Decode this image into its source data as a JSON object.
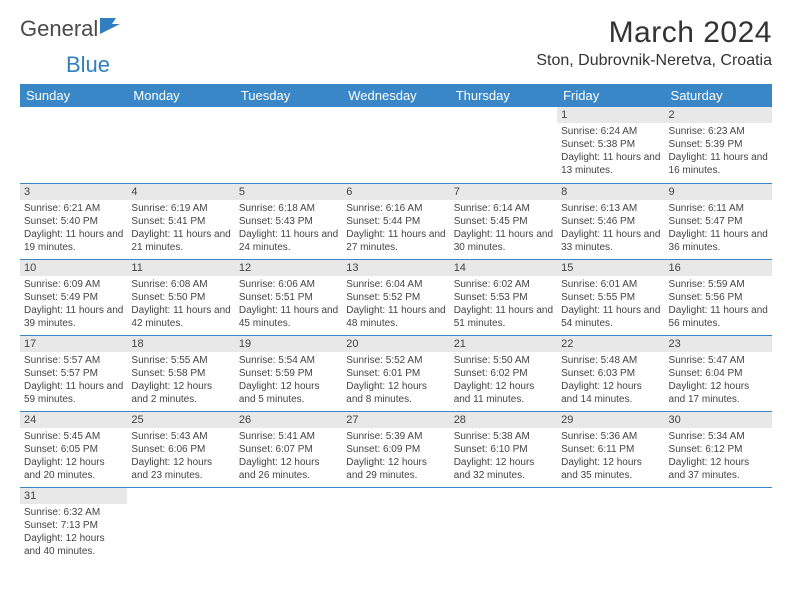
{
  "brand": {
    "name_part1": "General",
    "name_part2": "Blue"
  },
  "title": "March 2024",
  "location": "Ston, Dubrovnik-Neretva, Croatia",
  "colors": {
    "header_bg": "#3a87c7",
    "header_text": "#ffffff",
    "row_divider": "#3a87c7",
    "daynum_bg": "#e8e8e8",
    "text": "#333333",
    "logo_blue": "#2f7fc1"
  },
  "weekdays": [
    "Sunday",
    "Monday",
    "Tuesday",
    "Wednesday",
    "Thursday",
    "Friday",
    "Saturday"
  ],
  "weeks": [
    [
      {
        "day": "",
        "sunrise": "",
        "sunset": "",
        "daylight": ""
      },
      {
        "day": "",
        "sunrise": "",
        "sunset": "",
        "daylight": ""
      },
      {
        "day": "",
        "sunrise": "",
        "sunset": "",
        "daylight": ""
      },
      {
        "day": "",
        "sunrise": "",
        "sunset": "",
        "daylight": ""
      },
      {
        "day": "",
        "sunrise": "",
        "sunset": "",
        "daylight": ""
      },
      {
        "day": "1",
        "sunrise": "Sunrise: 6:24 AM",
        "sunset": "Sunset: 5:38 PM",
        "daylight": "Daylight: 11 hours and 13 minutes."
      },
      {
        "day": "2",
        "sunrise": "Sunrise: 6:23 AM",
        "sunset": "Sunset: 5:39 PM",
        "daylight": "Daylight: 11 hours and 16 minutes."
      }
    ],
    [
      {
        "day": "3",
        "sunrise": "Sunrise: 6:21 AM",
        "sunset": "Sunset: 5:40 PM",
        "daylight": "Daylight: 11 hours and 19 minutes."
      },
      {
        "day": "4",
        "sunrise": "Sunrise: 6:19 AM",
        "sunset": "Sunset: 5:41 PM",
        "daylight": "Daylight: 11 hours and 21 minutes."
      },
      {
        "day": "5",
        "sunrise": "Sunrise: 6:18 AM",
        "sunset": "Sunset: 5:43 PM",
        "daylight": "Daylight: 11 hours and 24 minutes."
      },
      {
        "day": "6",
        "sunrise": "Sunrise: 6:16 AM",
        "sunset": "Sunset: 5:44 PM",
        "daylight": "Daylight: 11 hours and 27 minutes."
      },
      {
        "day": "7",
        "sunrise": "Sunrise: 6:14 AM",
        "sunset": "Sunset: 5:45 PM",
        "daylight": "Daylight: 11 hours and 30 minutes."
      },
      {
        "day": "8",
        "sunrise": "Sunrise: 6:13 AM",
        "sunset": "Sunset: 5:46 PM",
        "daylight": "Daylight: 11 hours and 33 minutes."
      },
      {
        "day": "9",
        "sunrise": "Sunrise: 6:11 AM",
        "sunset": "Sunset: 5:47 PM",
        "daylight": "Daylight: 11 hours and 36 minutes."
      }
    ],
    [
      {
        "day": "10",
        "sunrise": "Sunrise: 6:09 AM",
        "sunset": "Sunset: 5:49 PM",
        "daylight": "Daylight: 11 hours and 39 minutes."
      },
      {
        "day": "11",
        "sunrise": "Sunrise: 6:08 AM",
        "sunset": "Sunset: 5:50 PM",
        "daylight": "Daylight: 11 hours and 42 minutes."
      },
      {
        "day": "12",
        "sunrise": "Sunrise: 6:06 AM",
        "sunset": "Sunset: 5:51 PM",
        "daylight": "Daylight: 11 hours and 45 minutes."
      },
      {
        "day": "13",
        "sunrise": "Sunrise: 6:04 AM",
        "sunset": "Sunset: 5:52 PM",
        "daylight": "Daylight: 11 hours and 48 minutes."
      },
      {
        "day": "14",
        "sunrise": "Sunrise: 6:02 AM",
        "sunset": "Sunset: 5:53 PM",
        "daylight": "Daylight: 11 hours and 51 minutes."
      },
      {
        "day": "15",
        "sunrise": "Sunrise: 6:01 AM",
        "sunset": "Sunset: 5:55 PM",
        "daylight": "Daylight: 11 hours and 54 minutes."
      },
      {
        "day": "16",
        "sunrise": "Sunrise: 5:59 AM",
        "sunset": "Sunset: 5:56 PM",
        "daylight": "Daylight: 11 hours and 56 minutes."
      }
    ],
    [
      {
        "day": "17",
        "sunrise": "Sunrise: 5:57 AM",
        "sunset": "Sunset: 5:57 PM",
        "daylight": "Daylight: 11 hours and 59 minutes."
      },
      {
        "day": "18",
        "sunrise": "Sunrise: 5:55 AM",
        "sunset": "Sunset: 5:58 PM",
        "daylight": "Daylight: 12 hours and 2 minutes."
      },
      {
        "day": "19",
        "sunrise": "Sunrise: 5:54 AM",
        "sunset": "Sunset: 5:59 PM",
        "daylight": "Daylight: 12 hours and 5 minutes."
      },
      {
        "day": "20",
        "sunrise": "Sunrise: 5:52 AM",
        "sunset": "Sunset: 6:01 PM",
        "daylight": "Daylight: 12 hours and 8 minutes."
      },
      {
        "day": "21",
        "sunrise": "Sunrise: 5:50 AM",
        "sunset": "Sunset: 6:02 PM",
        "daylight": "Daylight: 12 hours and 11 minutes."
      },
      {
        "day": "22",
        "sunrise": "Sunrise: 5:48 AM",
        "sunset": "Sunset: 6:03 PM",
        "daylight": "Daylight: 12 hours and 14 minutes."
      },
      {
        "day": "23",
        "sunrise": "Sunrise: 5:47 AM",
        "sunset": "Sunset: 6:04 PM",
        "daylight": "Daylight: 12 hours and 17 minutes."
      }
    ],
    [
      {
        "day": "24",
        "sunrise": "Sunrise: 5:45 AM",
        "sunset": "Sunset: 6:05 PM",
        "daylight": "Daylight: 12 hours and 20 minutes."
      },
      {
        "day": "25",
        "sunrise": "Sunrise: 5:43 AM",
        "sunset": "Sunset: 6:06 PM",
        "daylight": "Daylight: 12 hours and 23 minutes."
      },
      {
        "day": "26",
        "sunrise": "Sunrise: 5:41 AM",
        "sunset": "Sunset: 6:07 PM",
        "daylight": "Daylight: 12 hours and 26 minutes."
      },
      {
        "day": "27",
        "sunrise": "Sunrise: 5:39 AM",
        "sunset": "Sunset: 6:09 PM",
        "daylight": "Daylight: 12 hours and 29 minutes."
      },
      {
        "day": "28",
        "sunrise": "Sunrise: 5:38 AM",
        "sunset": "Sunset: 6:10 PM",
        "daylight": "Daylight: 12 hours and 32 minutes."
      },
      {
        "day": "29",
        "sunrise": "Sunrise: 5:36 AM",
        "sunset": "Sunset: 6:11 PM",
        "daylight": "Daylight: 12 hours and 35 minutes."
      },
      {
        "day": "30",
        "sunrise": "Sunrise: 5:34 AM",
        "sunset": "Sunset: 6:12 PM",
        "daylight": "Daylight: 12 hours and 37 minutes."
      }
    ],
    [
      {
        "day": "31",
        "sunrise": "Sunrise: 6:32 AM",
        "sunset": "Sunset: 7:13 PM",
        "daylight": "Daylight: 12 hours and 40 minutes."
      },
      {
        "day": "",
        "sunrise": "",
        "sunset": "",
        "daylight": ""
      },
      {
        "day": "",
        "sunrise": "",
        "sunset": "",
        "daylight": ""
      },
      {
        "day": "",
        "sunrise": "",
        "sunset": "",
        "daylight": ""
      },
      {
        "day": "",
        "sunrise": "",
        "sunset": "",
        "daylight": ""
      },
      {
        "day": "",
        "sunrise": "",
        "sunset": "",
        "daylight": ""
      },
      {
        "day": "",
        "sunrise": "",
        "sunset": "",
        "daylight": ""
      }
    ]
  ]
}
